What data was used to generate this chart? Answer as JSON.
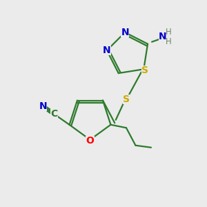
{
  "bg_color": "#ebebeb",
  "atom_colors": {
    "N": "#0000cc",
    "S": "#ccaa00",
    "O": "#ff0000",
    "C": "#2d7a2d",
    "NH_color": "#6a8a6a"
  },
  "bond_color": "#2d7a2d",
  "lw": 1.6,
  "fs": 10
}
